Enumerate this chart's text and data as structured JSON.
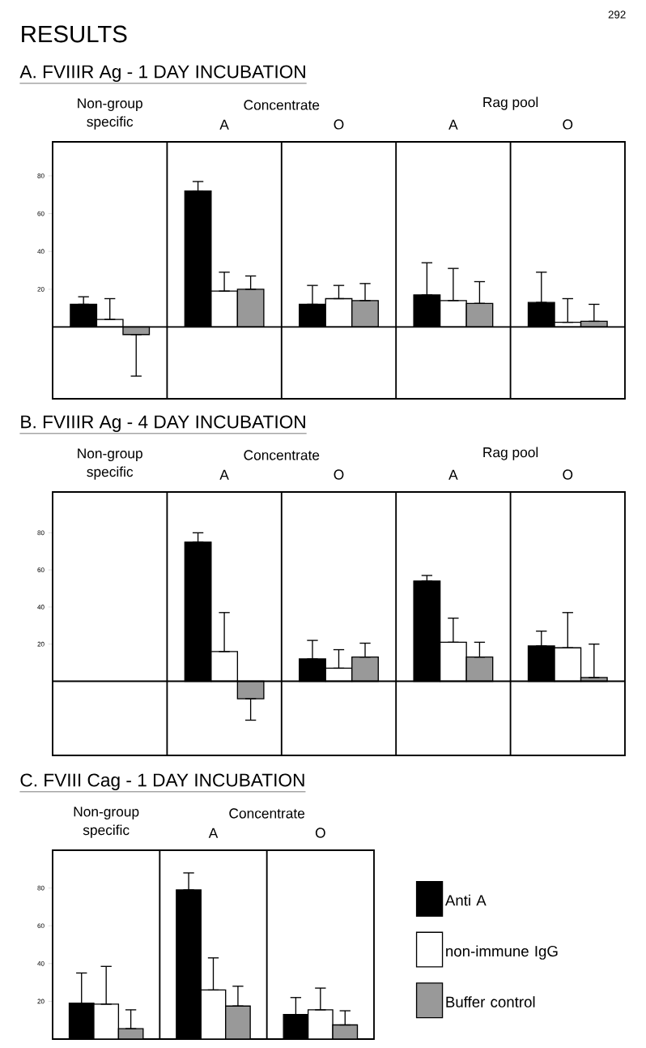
{
  "chart_data": [
    {
      "type": "bar",
      "title": "A.  FVIIIR Ag - 1 DAY INCUBATION",
      "categories": [
        "Non-group specific",
        "A",
        "O",
        "A",
        "O"
      ],
      "ylim": [
        -38,
        98
      ],
      "yticks": [
        20,
        40,
        60,
        80
      ],
      "grid": "x",
      "annotations": [
        "RESULTS",
        "292",
        "Concentrate",
        "Rag pool"
      ],
      "series": [
        {
          "color": "#000000",
          "values": [
            12,
            72,
            12,
            17,
            13
          ],
          "errors": [
            [
              12,
              16
            ],
            [
              72,
              77
            ],
            [
              12,
              22
            ],
            [
              17,
              34
            ],
            [
              13,
              29
            ]
          ]
        },
        {
          "color": "#ffffff",
          "values": [
            4,
            19,
            15,
            14,
            2.5
          ],
          "errors": [
            [
              4,
              15
            ],
            [
              19,
              29
            ],
            [
              15,
              22
            ],
            [
              14,
              31
            ],
            [
              2.5,
              15
            ]
          ]
        },
        {
          "color": "#999999",
          "values": [
            -4,
            20,
            14,
            12.5,
            3
          ],
          "errors": [
            [
              -26,
              -4
            ],
            [
              20,
              27
            ],
            [
              14,
              23
            ],
            [
              12.5,
              24
            ],
            [
              3,
              12
            ]
          ]
        }
      ]
    },
    {
      "type": "bar",
      "title": "B.  FVIIIR Ag - 4 DAY INCUBATION",
      "categories": [
        "Non-group specific",
        "A",
        "O",
        "A",
        "O"
      ],
      "ylim": [
        -40,
        102
      ],
      "yticks": [
        20,
        40,
        60,
        80
      ],
      "grid": "x",
      "annotations": [
        "Concentrate",
        "Rag pool"
      ],
      "series": [
        {
          "color": "#000000",
          "values": [
            null,
            75,
            12,
            54,
            19
          ],
          "errors": [
            null,
            [
              75,
              80
            ],
            [
              12,
              22
            ],
            [
              54,
              57
            ],
            [
              19,
              27
            ]
          ]
        },
        {
          "color": "#ffffff",
          "values": [
            null,
            16,
            7,
            21,
            18
          ],
          "errors": [
            null,
            [
              16,
              37
            ],
            [
              7,
              17
            ],
            [
              21,
              34
            ],
            [
              18,
              37
            ]
          ]
        },
        {
          "color": "#999999",
          "values": [
            null,
            -9.5,
            13,
            13,
            2
          ],
          "errors": [
            null,
            [
              -21,
              -9.5
            ],
            [
              13,
              20.5
            ],
            [
              13,
              21
            ],
            [
              2,
              20
            ]
          ]
        }
      ]
    },
    {
      "type": "bar",
      "title": "C.  FVIII Cag - 1 DAY INCUBATION",
      "categories": [
        "Non-group specific",
        "A",
        "O"
      ],
      "ylim": [
        0,
        100
      ],
      "yticks": [
        20,
        40,
        60,
        80
      ],
      "grid": "x",
      "legend": "right",
      "annotations": [
        "Concentrate"
      ],
      "series": [
        {
          "name": "Anti A",
          "color": "#000000",
          "values": [
            19,
            79,
            13
          ],
          "errors": [
            [
              19,
              35
            ],
            [
              79,
              88
            ],
            [
              13,
              22
            ]
          ]
        },
        {
          "name": "non-immune IgG",
          "color": "#ffffff",
          "values": [
            18.5,
            26,
            15.5
          ],
          "errors": [
            [
              18.5,
              38.5
            ],
            [
              26,
              43
            ],
            [
              15.5,
              27
            ]
          ]
        },
        {
          "name": "Buffer control",
          "color": "#999999",
          "values": [
            5.5,
            17.5,
            7.5
          ],
          "errors": [
            [
              5.5,
              15.5
            ],
            [
              17.5,
              28
            ],
            [
              7.5,
              15
            ]
          ]
        }
      ]
    }
  ]
}
